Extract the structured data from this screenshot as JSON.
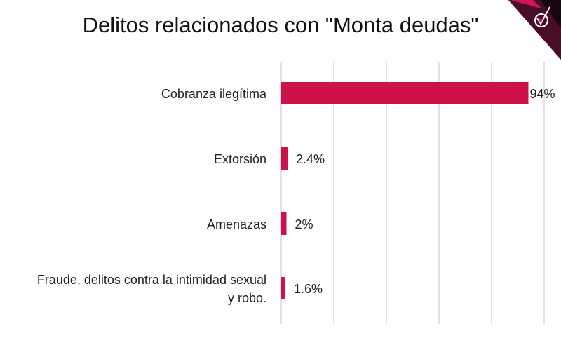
{
  "chart_data": {
    "type": "bar",
    "orientation": "horizontal",
    "title": "Delitos relacionados con \"Monta deudas\"",
    "categories": [
      [
        "Cobranza ilegítima"
      ],
      [
        "Extorsión"
      ],
      [
        "Amenazas"
      ],
      [
        "Fraude, delitos contra la intimidad sexual",
        "y robo."
      ]
    ],
    "values": [
      94,
      2.4,
      2,
      1.6
    ],
    "labels": [
      "94%",
      "2.4%",
      "2%",
      "1.6%"
    ],
    "xlim": [
      0,
      100
    ],
    "grid_step": 20,
    "grid": true,
    "xlabel": "",
    "ylabel": ""
  },
  "colors": {
    "bar": "#cc1248",
    "grid": "#d9d9d9",
    "logo_dark": "#2a0a18",
    "logo_accent": "#d4145a"
  },
  "logo_icon": "check-badge-icon"
}
